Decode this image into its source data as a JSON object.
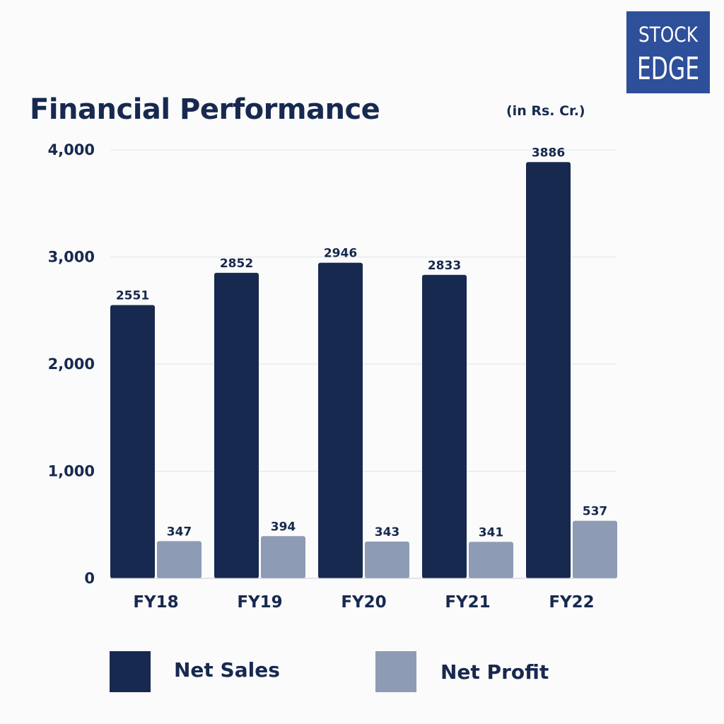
{
  "header": {
    "title": "Financial Performance",
    "unit": "(in Rs. Cr.)"
  },
  "logo": {
    "line1": "STOCK",
    "line2": "EDGE",
    "color": "#2e4f9a"
  },
  "colors": {
    "net_sales": "#17294f",
    "net_profit": "#8e9bb5",
    "grid": "#e2e4e8",
    "text": "#17294f"
  },
  "chart_data": {
    "type": "bar",
    "title": "Financial Performance",
    "categories": [
      "FY18",
      "FY19",
      "FY20",
      "FY21",
      "FY22"
    ],
    "series": [
      {
        "name": "Net Sales",
        "values": [
          2551,
          2852,
          2946,
          2833,
          3886
        ]
      },
      {
        "name": "Net Profit",
        "values": [
          347,
          394,
          343,
          341,
          537
        ]
      }
    ],
    "yticks": [
      "0",
      "1,000",
      "2,000",
      "3,000",
      "4,000"
    ],
    "ylim": [
      0,
      4000
    ],
    "grid": true,
    "legend_position": "bottom"
  }
}
